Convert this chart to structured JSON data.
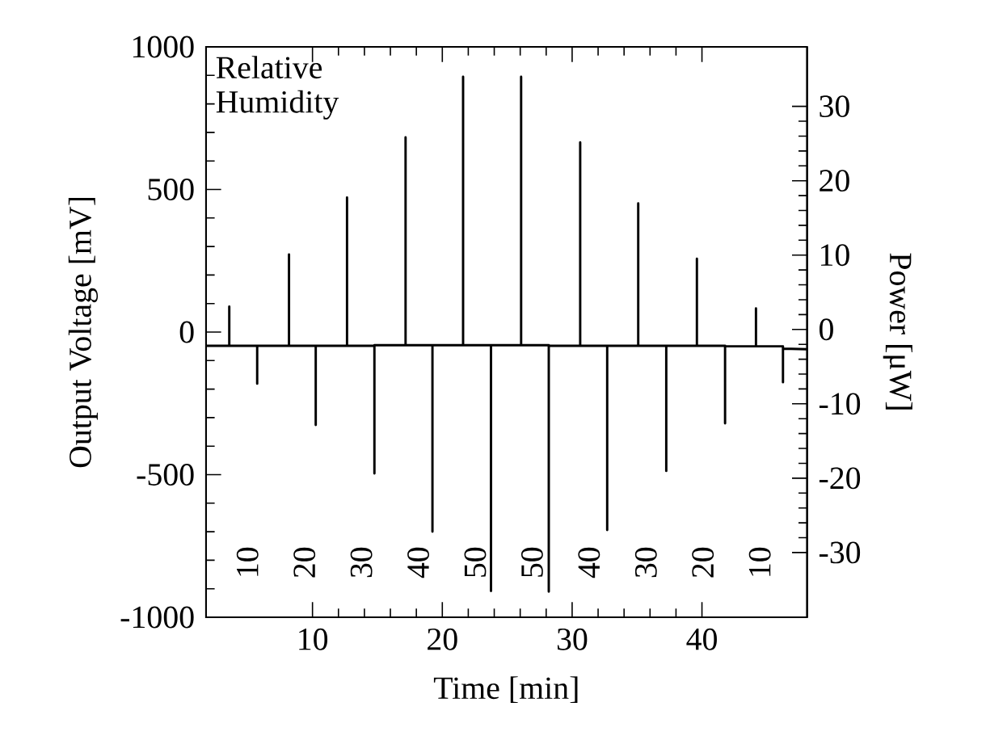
{
  "chart_data": {
    "type": "line",
    "xlabel": "Time [min]",
    "ylabel": "Output Voltage [mV]",
    "y2label": "Power [μW]",
    "xlim": [
      1.8,
      48.1
    ],
    "xticks": [
      10,
      20,
      30,
      40
    ],
    "ylim": [
      -1000,
      1000
    ],
    "yticks": [
      {
        "value": -1000,
        "label": "-1000"
      },
      {
        "value": -500,
        "label": "-500"
      },
      0,
      500,
      1000
    ],
    "y2lim": [
      -38.7,
      38
    ],
    "y2ticks": [
      {
        "value": -30,
        "label": "-30"
      },
      {
        "value": -20,
        "label": "-20"
      },
      {
        "value": -10,
        "label": "-10"
      },
      0,
      10,
      20,
      30
    ],
    "grid": false,
    "marker": "none",
    "line_style": "solid",
    "series": [
      {
        "color": "#000000",
        "x": [
          1.8,
          3.59,
          3.59,
          3.59,
          5.74,
          5.74,
          5.74,
          8.19,
          8.19,
          8.19,
          10.25,
          10.25,
          10.25,
          12.66,
          12.66,
          12.66,
          14.77,
          14.77,
          14.77,
          17.17,
          17.17,
          17.17,
          19.24,
          19.24,
          19.24,
          21.6,
          21.6,
          21.6,
          23.75,
          23.75,
          23.75,
          26.07,
          26.07,
          26.07,
          28.2,
          28.2,
          28.2,
          30.62,
          30.62,
          30.62,
          32.7,
          32.7,
          32.7,
          35.09,
          35.09,
          35.09,
          37.25,
          37.25,
          37.25,
          39.61,
          39.61,
          39.61,
          41.78,
          41.78,
          41.78,
          44.16,
          44.16,
          44.16,
          46.24,
          46.24,
          46.24,
          48.1
        ],
        "values": [
          -48,
          -48,
          89,
          -48,
          -48,
          -181,
          -48,
          -48,
          272,
          -48,
          -48,
          -326,
          -48,
          -48,
          472,
          -48,
          -48,
          -496,
          -46,
          -46,
          683,
          -46,
          -46,
          -700,
          -46,
          -46,
          895,
          -46,
          -46,
          -908,
          -46,
          -46,
          895,
          -46,
          -46,
          -910,
          -48,
          -48,
          665,
          -48,
          -48,
          -694,
          -48,
          -48,
          451,
          -48,
          -48,
          -487,
          -48,
          -48,
          257,
          -48,
          -48,
          -320,
          -50,
          -50,
          83,
          -50,
          -50,
          -176,
          -58,
          -60
        ]
      }
    ],
    "annotations": [
      "Relative Humidity",
      "10",
      "20",
      "30",
      "40",
      "50",
      "50",
      "40",
      "30",
      "20",
      "10"
    ]
  }
}
